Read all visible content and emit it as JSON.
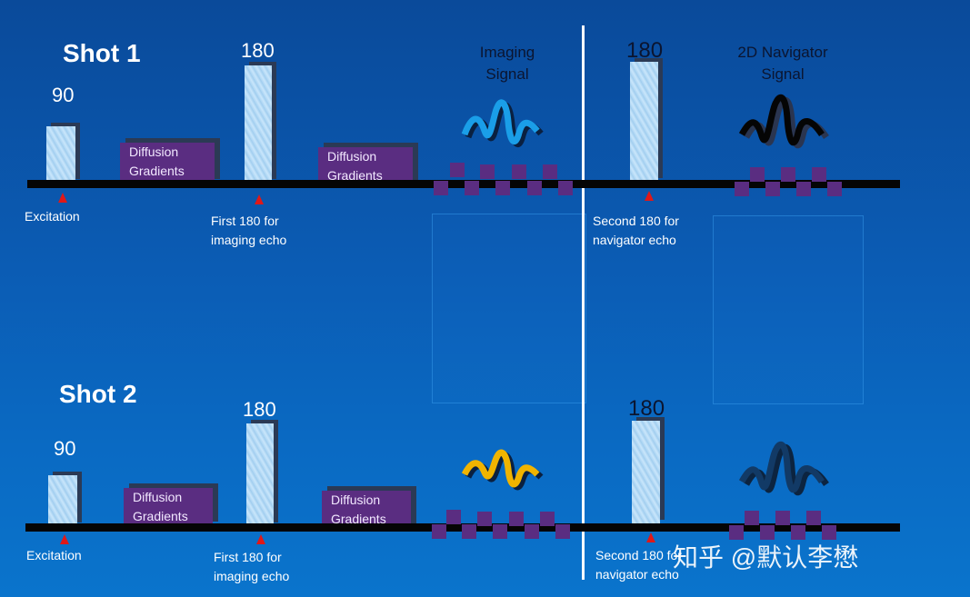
{
  "shot1": {
    "title": "Shot 1",
    "pulse90": "90",
    "pulse180_first": "180",
    "pulse180_second": "180",
    "diffusion_left": [
      "Diffusion",
      "Gradients"
    ],
    "diffusion_right": [
      "Diffusion",
      "Gradients"
    ],
    "imaging_signal": [
      "Imaging",
      "Signal"
    ],
    "navigator_signal": [
      "2D Navigator",
      "Signal"
    ],
    "excitation": "Excitation",
    "first180": [
      "First 180 for",
      "imaging echo"
    ],
    "second180": [
      "Second 180 for",
      "navigator echo"
    ],
    "imaging_wave_color": "#1a9ee8",
    "navigator_wave_color": "#050505"
  },
  "shot2": {
    "title": "Shot 2",
    "pulse90": "90",
    "pulse180_first": "180",
    "pulse180_second": "180",
    "diffusion_left": [
      "Diffusion",
      "Gradients"
    ],
    "diffusion_right": [
      "Diffusion",
      "Gradients"
    ],
    "excitation": "Excitation",
    "first180": [
      "First 180 for",
      "imaging echo"
    ],
    "second180": [
      "Second 180 for",
      "navigator echo"
    ],
    "imaging_wave_color": "#f0b400",
    "navigator_wave_color": "#123a66"
  },
  "watermark": "知乎 @默认李懋"
}
